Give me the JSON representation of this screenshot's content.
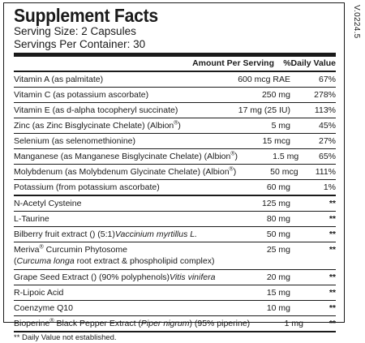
{
  "title": "Supplement Facts",
  "serving_size": "Serving Size: 2 Capsules",
  "servings_per_container": "Servings Per Container: 30",
  "version_code": "V.0224.5",
  "header": {
    "amount": "Amount Per Serving",
    "daily_value": "%Daily Value"
  },
  "rows": [
    {
      "pre": "Vitamin A (as palmitate)",
      "amount": "600 mcg RAE",
      "dv": "67%"
    },
    {
      "pre": "Vitamin C (as potassium ascorbate)",
      "amount": "250 mg",
      "dv": "278%"
    },
    {
      "pre": "Vitamin E (as d-alpha tocopheryl succinate)",
      "amount": "17 mg (25 IU)",
      "dv": "113%"
    },
    {
      "pre": "Zinc (as Zinc Bisglycinate Chelate) (Albion",
      "sup": "®",
      "post": ")",
      "amount": "5 mg",
      "dv": "45%"
    },
    {
      "pre": "Selenium (as selenomethionine)",
      "amount": "15 mcg",
      "dv": "27%"
    },
    {
      "pre": "Manganese (as Manganese Bisglycinate Chelate) (Albion",
      "sup": "®",
      "post": ")",
      "amount": "1.5 mg",
      "dv": "65%"
    },
    {
      "pre": "Molybdenum (as Molybdenum Glycinate Chelate) (Albion",
      "sup": "®",
      "post": ")",
      "amount": "50 mcg",
      "dv": "111%"
    },
    {
      "pre": "Potassium (from potassium ascorbate)",
      "amount": "60 mg",
      "dv": "1%"
    },
    {
      "pre": "N-Acetyl Cysteine",
      "amount": "125 mg",
      "dv": "**"
    },
    {
      "pre": "L-Taurine",
      "amount": "80 mg",
      "dv": "**"
    },
    {
      "pre": "Bilberry fruit extract (",
      "ital": "Vaccinium myrtillus L.",
      "post": ") (5:1)",
      "amount": "50 mg",
      "dv": "**"
    },
    {
      "pre": "Meriva",
      "sup": "®",
      "post": " Curcumin Phytosome",
      "pre2": "(",
      "ital2": "Curcuma longa",
      "post2": " root extract & phospholipid complex)",
      "amount": "25 mg",
      "dv": "**"
    },
    {
      "pre": "Grape Seed Extract (",
      "ital": "Vitis vinifera",
      "post": ") (90% polyphenols)",
      "amount": "20 mg",
      "dv": "**"
    },
    {
      "pre": "R-Lipoic Acid",
      "amount": "15 mg",
      "dv": "**"
    },
    {
      "pre": "Coenzyme Q10",
      "amount": "10 mg",
      "dv": "**"
    },
    {
      "pre": "Bioperine",
      "sup": "®",
      "post": " Black Pepper Extract (",
      "ital": "Piper nigrum",
      "post3": ") (95% piperine)",
      "amount": "1 mg",
      "dv": "**"
    }
  ],
  "footnote": "** Daily Value not established."
}
